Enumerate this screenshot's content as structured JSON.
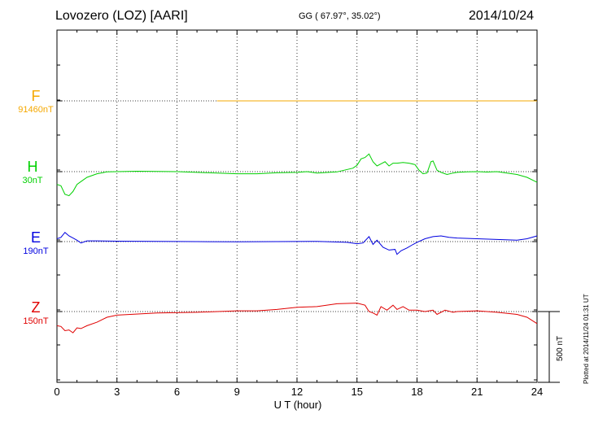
{
  "header": {
    "title": "Lovozero (LOZ)  [AARI]",
    "coords": "GG ( 67.97°,  35.02°)",
    "date": "2014/10/24"
  },
  "side_note": "Plotted at 2014/11/24 01:31  UT",
  "scale_label": "500 nT",
  "colors": {
    "F": "#f5a800",
    "H": "#00d000",
    "E": "#0000e0",
    "Z": "#e00000",
    "axis": "#000000"
  },
  "chart_data": {
    "type": "line",
    "xlabel": "U T (hour)",
    "xlim": [
      0,
      24
    ],
    "xticks": [
      "0",
      "3",
      "6",
      "9",
      "12",
      "15",
      "18",
      "21",
      "24"
    ],
    "units": "nT",
    "scale_bar_nT": 500,
    "grid": true,
    "series": [
      {
        "name": "F",
        "baseline_label": "91460nT",
        "x": [
          8.0,
          24.0
        ],
        "y": [
          0,
          0
        ]
      },
      {
        "name": "H",
        "baseline_label": "30nT",
        "x": [
          0,
          0.2,
          0.4,
          0.6,
          0.8,
          1.0,
          1.2,
          1.5,
          2.0,
          2.5,
          3.0,
          4.0,
          5.0,
          6.0,
          7.0,
          8.0,
          9.0,
          10.0,
          11.0,
          12.0,
          12.5,
          13.0,
          14.0,
          14.8,
          15.0,
          15.2,
          15.4,
          15.6,
          15.8,
          16.0,
          16.2,
          16.4,
          16.6,
          16.8,
          17.0,
          17.3,
          17.6,
          17.9,
          18.1,
          18.3,
          18.5,
          18.7,
          18.8,
          19.0,
          19.2,
          19.5,
          19.8,
          20.0,
          20.5,
          21.0,
          21.5,
          22.0,
          22.5,
          23.0,
          23.5,
          24.0
        ],
        "y": [
          -90,
          -100,
          -160,
          -170,
          -140,
          -90,
          -70,
          -40,
          -15,
          -2,
          0,
          3,
          2,
          0,
          -5,
          -10,
          -15,
          -15,
          -8,
          -5,
          0,
          -10,
          -2,
          25,
          45,
          90,
          100,
          125,
          70,
          40,
          55,
          70,
          40,
          60,
          60,
          65,
          60,
          50,
          10,
          -15,
          -10,
          70,
          75,
          10,
          -5,
          -20,
          -10,
          -5,
          -2,
          0,
          -3,
          0,
          -10,
          -20,
          -40,
          -75
        ]
      },
      {
        "name": "E",
        "baseline_label": "190nT",
        "x": [
          0,
          0.2,
          0.4,
          0.6,
          0.8,
          1.0,
          1.2,
          1.5,
          2.0,
          3.0,
          5.0,
          7.0,
          9.0,
          11.0,
          13.0,
          14.5,
          15.0,
          15.3,
          15.6,
          15.8,
          16.0,
          16.3,
          16.6,
          16.9,
          17.0,
          17.2,
          17.5,
          17.8,
          18.0,
          18.4,
          18.8,
          19.2,
          19.6,
          20.0,
          21.0,
          22.0,
          23.0,
          23.5,
          24.0
        ],
        "y": [
          20,
          30,
          65,
          40,
          25,
          10,
          -10,
          5,
          5,
          3,
          2,
          0,
          -2,
          0,
          2,
          -5,
          -15,
          -10,
          35,
          -20,
          10,
          -40,
          -60,
          -55,
          -90,
          -65,
          -45,
          -20,
          -5,
          20,
          35,
          40,
          30,
          25,
          20,
          15,
          10,
          20,
          40
        ]
      },
      {
        "name": "Z",
        "baseline_label": "150nT",
        "x": [
          0,
          0.2,
          0.4,
          0.6,
          0.8,
          1.0,
          1.2,
          1.5,
          2.0,
          2.5,
          3.0,
          5.0,
          7.0,
          9.0,
          10.0,
          11.0,
          12.0,
          13.0,
          14.0,
          15.0,
          15.4,
          15.6,
          15.8,
          16.0,
          16.2,
          16.5,
          16.8,
          17.0,
          17.3,
          17.6,
          18.0,
          18.4,
          18.8,
          19.0,
          19.4,
          19.8,
          20.0,
          21.0,
          22.0,
          23.0,
          23.5,
          24.0
        ],
        "y": [
          -100,
          -105,
          -135,
          -130,
          -150,
          -115,
          -120,
          -100,
          -75,
          -40,
          -25,
          -10,
          -5,
          5,
          5,
          15,
          30,
          35,
          55,
          60,
          45,
          0,
          -10,
          -25,
          35,
          10,
          45,
          15,
          35,
          10,
          10,
          0,
          10,
          -20,
          10,
          -5,
          0,
          5,
          -5,
          -20,
          -40,
          -85
        ]
      }
    ]
  }
}
